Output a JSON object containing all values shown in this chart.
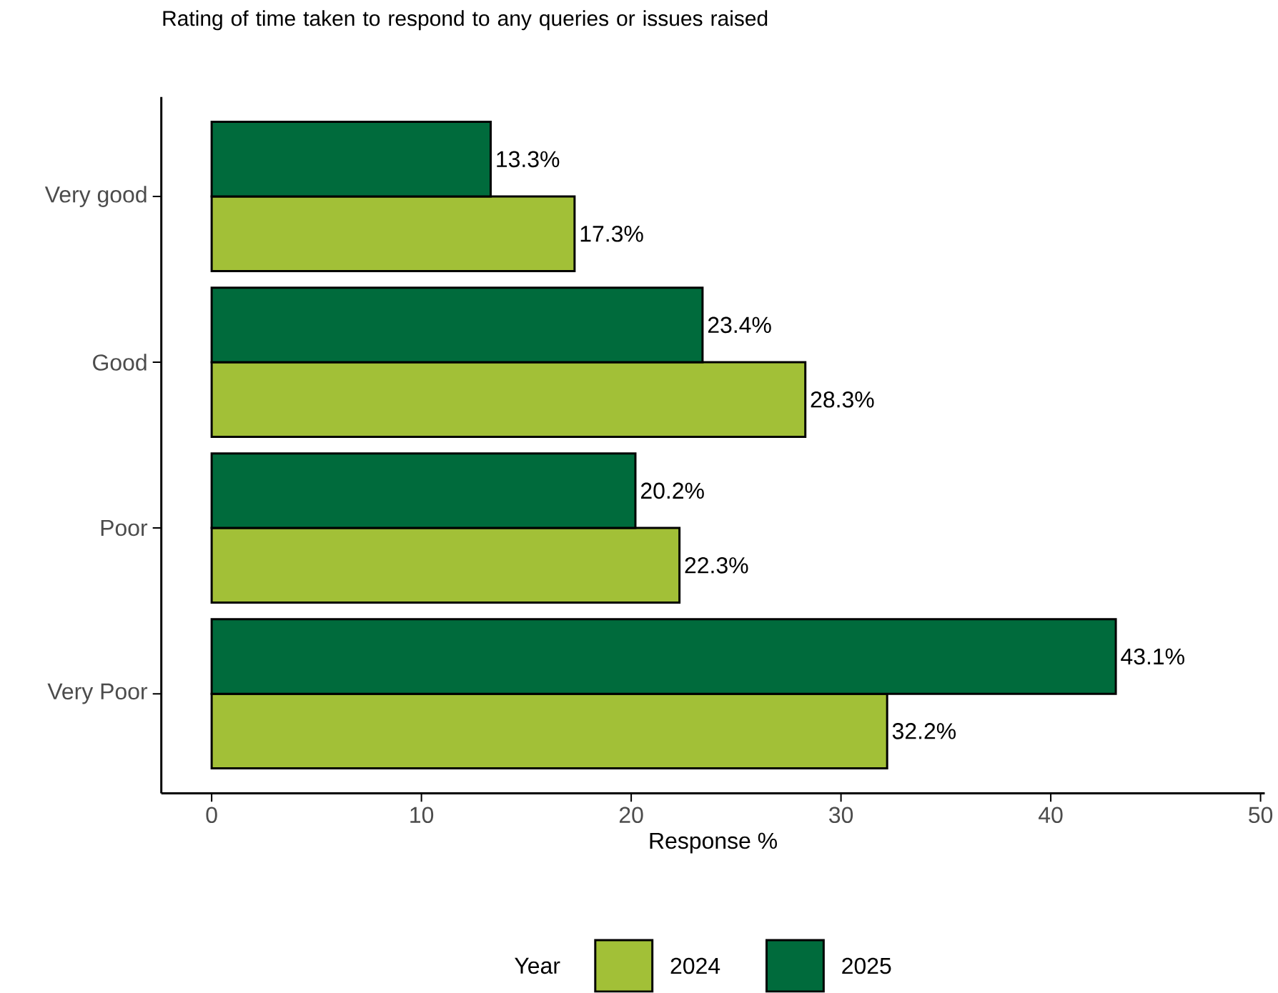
{
  "chart_data": {
    "type": "bar",
    "orientation": "horizontal",
    "title": "Rating of time taken to respond to any queries or issues raised",
    "categories": [
      "Very good",
      "Good",
      "Poor",
      "Very Poor"
    ],
    "series": [
      {
        "name": "2024",
        "color": "#a2c037",
        "values": [
          17.3,
          28.3,
          22.3,
          32.2
        ],
        "value_labels": [
          "17.3%",
          "28.3%",
          "22.3%",
          "32.2%"
        ]
      },
      {
        "name": "2025",
        "color": "#006b3c",
        "values": [
          13.3,
          23.4,
          20.2,
          43.1
        ],
        "value_labels": [
          "13.3%",
          "23.4%",
          "20.2%",
          "43.1%"
        ]
      }
    ],
    "xlabel": "Response %",
    "legend_title": "Year",
    "legend": "bottom",
    "grid": false,
    "xlim": [
      -2.4,
      50.2
    ],
    "xticks": [
      0,
      10,
      20,
      30,
      40,
      50
    ]
  }
}
